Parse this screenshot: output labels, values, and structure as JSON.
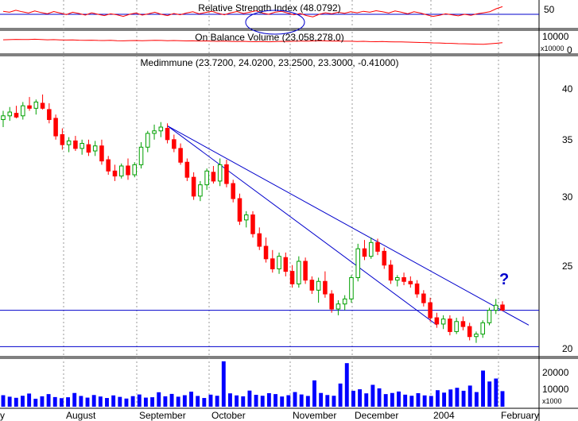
{
  "colors": {
    "up": "#00a000",
    "down": "#ff0000",
    "trendline": "#0000cc",
    "rsi_line": "#ff0000",
    "volume": "#0000ff",
    "annotation": "#0000cc",
    "grid": "#999999"
  },
  "panels": {
    "rsi_title": "Relative Strength Index (48.0792)",
    "obv_title": "On Balance Volume (23,058,278.0)",
    "price_title": "Medimmune (23.7200, 24.0200, 23.2500, 23.3000, -0.41000)",
    "rsi_ticks": [
      "50",
      "0"
    ],
    "obv_ticks": [
      "10000",
      "x10000"
    ],
    "price_ticks": [
      "40",
      "35",
      "30",
      "25",
      "20"
    ],
    "volume_ticks": [
      "20000",
      "10000",
      "x1000"
    ],
    "months": [
      "y",
      "August",
      "September",
      "October",
      "November",
      "December",
      "2004",
      "February"
    ],
    "annotation": "?"
  },
  "chart_data": [
    {
      "type": "line",
      "title": "Relative Strength Index (48.0792)",
      "ylim": [
        0,
        100
      ],
      "reference_lines": [
        50
      ],
      "series": [
        {
          "values": [
            62,
            58,
            66,
            60,
            55,
            63,
            57,
            52,
            61,
            55,
            49,
            58,
            53,
            47,
            56,
            50,
            45,
            52,
            48,
            42,
            50,
            55,
            47,
            52,
            58,
            50,
            45,
            53,
            48,
            55,
            60,
            52,
            57,
            62,
            54,
            48,
            56,
            61,
            53,
            58,
            64,
            55,
            50,
            58,
            62,
            55,
            48,
            53,
            45,
            40,
            50,
            56,
            52,
            58,
            54,
            60,
            56,
            62,
            58,
            64,
            60,
            55,
            63,
            58,
            52,
            60,
            55,
            48,
            42,
            46,
            52,
            48,
            44,
            50,
            46,
            52,
            56,
            60,
            72,
            80
          ]
        }
      ]
    },
    {
      "type": "line",
      "title": "On Balance Volume (23,058,278.0)",
      "ylim": [
        0,
        16000
      ],
      "series": [
        {
          "values": [
            9800,
            9900,
            10100,
            10000,
            9950,
            10200,
            10050,
            9800,
            9900,
            9700,
            9600,
            9750,
            9500,
            9400,
            9450,
            9300,
            9200,
            9350,
            9100,
            9000,
            9150,
            9250,
            9050,
            9200,
            9400,
            9300,
            9100,
            9250,
            9050,
            8900,
            9000,
            8800,
            8900,
            8700,
            8600,
            8750,
            8550,
            8450,
            8600,
            8400,
            8300,
            8450,
            8250,
            8400,
            8600,
            8500,
            8650,
            8800,
            8700,
            8900,
            9050,
            8900,
            8750,
            8850,
            8650,
            8700,
            8500,
            8600,
            8400,
            8300,
            8450,
            8250,
            8100,
            8200,
            8000,
            7900,
            7700,
            7600,
            7400,
            7300,
            7100,
            7000,
            6800,
            6700,
            6500,
            6400,
            6300,
            6700,
            7100,
            7500
          ]
        }
      ]
    },
    {
      "type": "candlestick",
      "title": "Medimmune (23.7200, 24.0200, 23.2500, 23.3000, -0.41000)",
      "ylim": [
        19.6,
        43.6
      ],
      "y_ticks": [
        40,
        35,
        30,
        25,
        20
      ],
      "x_labels": [
        "y",
        "August",
        "September",
        "October",
        "November",
        "December",
        "2004",
        "February"
      ],
      "candles": [
        [
          38.5,
          39.2,
          37.9,
          38.8
        ],
        [
          38.8,
          39.5,
          38.4,
          39.1
        ],
        [
          39.0,
          39.6,
          38.6,
          38.7
        ],
        [
          38.8,
          39.9,
          38.5,
          39.6
        ],
        [
          39.6,
          40.3,
          39.2,
          39.4
        ],
        [
          39.4,
          40.1,
          38.9,
          39.9
        ],
        [
          39.8,
          40.5,
          39.3,
          39.4
        ],
        [
          39.3,
          39.8,
          38.2,
          38.5
        ],
        [
          38.6,
          38.9,
          36.9,
          37.2
        ],
        [
          37.3,
          37.8,
          36.1,
          36.5
        ],
        [
          36.5,
          37.1,
          35.9,
          36.8
        ],
        [
          36.8,
          37.2,
          36.0,
          36.2
        ],
        [
          36.2,
          36.9,
          35.7,
          36.6
        ],
        [
          36.5,
          36.9,
          35.6,
          35.9
        ],
        [
          36.0,
          36.8,
          35.6,
          36.4
        ],
        [
          36.4,
          36.9,
          34.9,
          35.2
        ],
        [
          35.3,
          35.6,
          34.1,
          34.4
        ],
        [
          34.4,
          34.9,
          33.6,
          34.0
        ],
        [
          34.0,
          35.0,
          33.8,
          34.8
        ],
        [
          34.8,
          35.4,
          33.7,
          34.1
        ],
        [
          34.1,
          35.1,
          33.9,
          34.9
        ],
        [
          34.9,
          36.7,
          34.6,
          36.3
        ],
        [
          36.3,
          37.6,
          35.9,
          37.4
        ],
        [
          37.4,
          38.1,
          36.9,
          37.6
        ],
        [
          37.6,
          38.3,
          37.1,
          37.9
        ],
        [
          37.8,
          38.2,
          36.6,
          36.9
        ],
        [
          36.9,
          37.3,
          35.9,
          36.2
        ],
        [
          36.2,
          36.6,
          34.9,
          35.1
        ],
        [
          35.1,
          35.4,
          33.6,
          33.9
        ],
        [
          33.9,
          34.3,
          32.1,
          32.4
        ],
        [
          32.4,
          33.6,
          32.0,
          33.3
        ],
        [
          33.3,
          34.6,
          32.9,
          34.4
        ],
        [
          34.3,
          34.8,
          33.4,
          33.6
        ],
        [
          33.6,
          35.4,
          33.2,
          34.9
        ],
        [
          34.9,
          35.3,
          33.1,
          33.4
        ],
        [
          33.4,
          33.7,
          31.9,
          32.2
        ],
        [
          32.2,
          32.6,
          30.1,
          30.4
        ],
        [
          30.5,
          31.2,
          29.9,
          30.9
        ],
        [
          30.9,
          31.2,
          29.1,
          29.4
        ],
        [
          29.4,
          29.9,
          28.1,
          28.4
        ],
        [
          28.4,
          29.1,
          27.1,
          27.4
        ],
        [
          27.4,
          28.1,
          26.3,
          26.6
        ],
        [
          26.6,
          27.9,
          26.2,
          27.6
        ],
        [
          27.5,
          27.9,
          26.0,
          26.4
        ],
        [
          26.4,
          26.9,
          25.1,
          25.4
        ],
        [
          25.4,
          27.6,
          25.1,
          27.2
        ],
        [
          27.2,
          27.5,
          25.4,
          25.7
        ],
        [
          25.7,
          26.0,
          24.6,
          24.9
        ],
        [
          24.9,
          25.9,
          23.9,
          25.6
        ],
        [
          25.6,
          26.4,
          24.3,
          24.6
        ],
        [
          24.6,
          24.9,
          23.1,
          23.4
        ],
        [
          23.4,
          24.1,
          22.9,
          23.8
        ],
        [
          23.8,
          24.5,
          23.3,
          24.2
        ],
        [
          24.2,
          26.1,
          23.9,
          25.9
        ],
        [
          25.9,
          28.6,
          25.6,
          28.2
        ],
        [
          28.2,
          28.9,
          27.3,
          27.6
        ],
        [
          27.6,
          29.1,
          27.4,
          28.7
        ],
        [
          28.7,
          29.0,
          27.7,
          28.0
        ],
        [
          28.0,
          28.3,
          26.6,
          26.9
        ],
        [
          26.9,
          27.3,
          25.4,
          25.7
        ],
        [
          25.7,
          26.1,
          25.2,
          25.9
        ],
        [
          25.9,
          26.3,
          25.3,
          25.6
        ],
        [
          25.6,
          26.0,
          25.1,
          25.4
        ],
        [
          25.4,
          25.7,
          24.3,
          24.6
        ],
        [
          24.6,
          24.9,
          23.6,
          23.9
        ],
        [
          23.9,
          24.3,
          22.4,
          22.7
        ],
        [
          22.7,
          23.1,
          21.9,
          22.2
        ],
        [
          22.2,
          22.9,
          21.8,
          22.6
        ],
        [
          22.6,
          22.9,
          21.3,
          21.6
        ],
        [
          21.6,
          22.7,
          21.4,
          22.4
        ],
        [
          22.4,
          22.8,
          21.7,
          22.0
        ],
        [
          22.0,
          22.3,
          20.9,
          21.2
        ],
        [
          21.2,
          21.6,
          20.7,
          21.4
        ],
        [
          21.4,
          22.5,
          21.1,
          22.3
        ],
        [
          22.3,
          23.5,
          22.1,
          23.3
        ],
        [
          23.3,
          24.2,
          23.0,
          23.7
        ],
        [
          23.72,
          24.02,
          23.25,
          23.3
        ]
      ],
      "trendlines": [
        {
          "from": [
            25,
            38.0
          ],
          "to": [
            79,
            22.4
          ]
        },
        {
          "from": [
            25,
            38.0
          ],
          "to": [
            64,
            22.9
          ]
        }
      ],
      "horizontal_lines": [
        23.3,
        20.4
      ],
      "annotation": "?"
    },
    {
      "type": "bar",
      "title": "Volume",
      "ylim": [
        0,
        24000
      ],
      "y_ticks": [
        20000,
        10000
      ],
      "series": [
        {
          "values": [
            6200,
            5400,
            4800,
            5900,
            7100,
            4300,
            5600,
            6800,
            5200,
            4600,
            5100,
            7400,
            5800,
            4900,
            6300,
            5500,
            4700,
            6100,
            5300,
            4400,
            5700,
            6600,
            4900,
            5100,
            7800,
            5600,
            6900,
            5400,
            6200,
            8100,
            5800,
            4700,
            6500,
            5900,
            24500,
            7200,
            6100,
            5600,
            8700,
            6400,
            5900,
            7300,
            6800,
            5500,
            6200,
            7900,
            6600,
            5800,
            14200,
            7400,
            6300,
            5900,
            12500,
            23500,
            8600,
            9400,
            7200,
            11800,
            9900,
            6800,
            7400,
            8200,
            6500,
            5900,
            7300,
            6100,
            5800,
            8900,
            7600,
            9300,
            10200,
            8600,
            11400,
            7900,
            19500,
            13600,
            15200,
            8400
          ]
        }
      ]
    }
  ]
}
